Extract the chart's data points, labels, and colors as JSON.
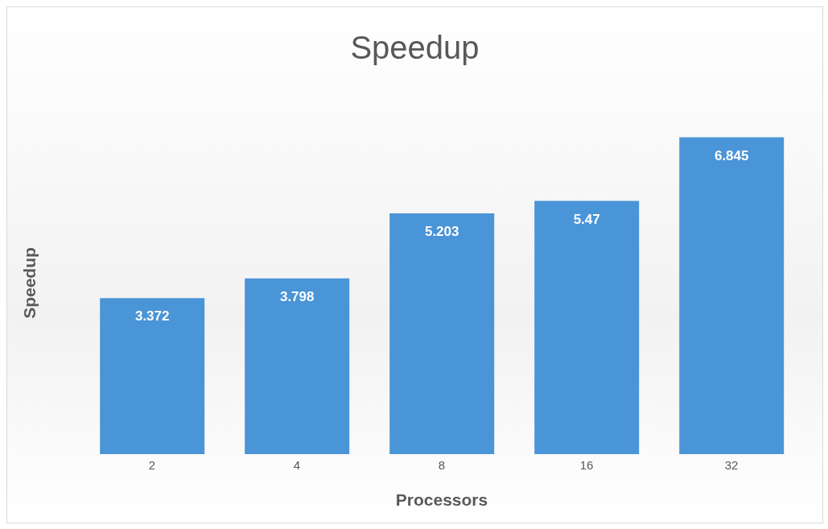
{
  "chart_data": {
    "type": "bar",
    "title": "Speedup",
    "xlabel": "Processors",
    "ylabel": "Speedup",
    "categories": [
      "2",
      "4",
      "8",
      "16",
      "32"
    ],
    "values": [
      3.372,
      3.798,
      5.203,
      5.47,
      6.845
    ],
    "color": "#4a94d8",
    "data_labels": true
  }
}
